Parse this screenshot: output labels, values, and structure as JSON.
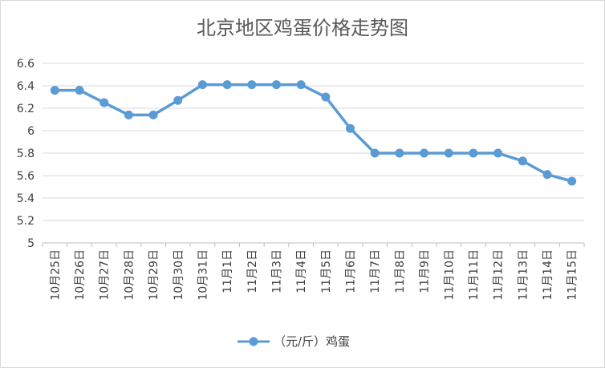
{
  "chart_data": {
    "type": "line",
    "title": "北京地区鸡蛋价格走势图",
    "categories": [
      "10月25日",
      "10月26日",
      "10月27日",
      "10月28日",
      "10月29日",
      "10月30日",
      "10月31日",
      "11月1日",
      "11月2日",
      "11月3日",
      "11月4日",
      "11月5日",
      "11月6日",
      "11月7日",
      "11月8日",
      "11月9日",
      "11月10日",
      "11月11日",
      "11月12日",
      "11月13日",
      "11月14日",
      "11月15日"
    ],
    "series": [
      {
        "name": "（元/斤）鸡蛋",
        "color": "#5b9bd5",
        "values": [
          6.36,
          6.36,
          6.25,
          6.14,
          6.14,
          6.27,
          6.41,
          6.41,
          6.41,
          6.41,
          6.41,
          6.3,
          6.02,
          5.8,
          5.8,
          5.8,
          5.8,
          5.8,
          5.8,
          5.73,
          5.61,
          5.55
        ]
      }
    ],
    "ylim": [
      5,
      6.6
    ],
    "yticks": [
      "5",
      "5.2",
      "5.4",
      "5.6",
      "5.8",
      "6",
      "6.2",
      "6.4",
      "6.6"
    ],
    "xlabel": "",
    "ylabel": "",
    "grid": true,
    "legend": "bottom"
  }
}
